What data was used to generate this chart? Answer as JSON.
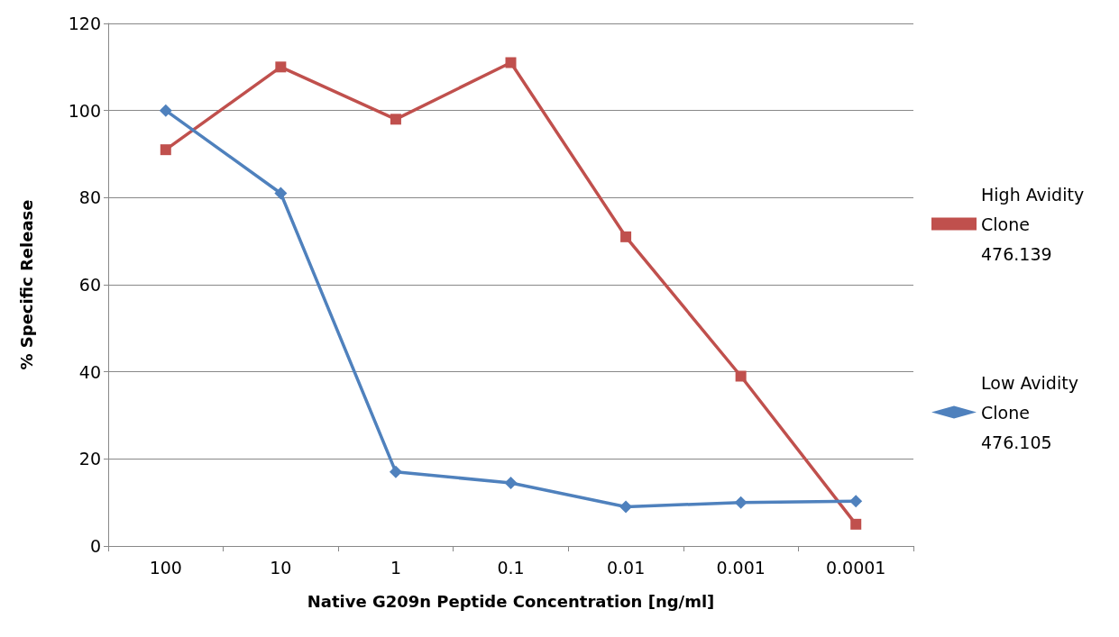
{
  "chart_data": {
    "type": "line",
    "xlabel": "Native G209n Peptide Concentration [ng/ml]",
    "ylabel": "% Specific Release",
    "categories": [
      "100",
      "10",
      "1",
      "0.1",
      "0.01",
      "0.001",
      "0.0001"
    ],
    "series": [
      {
        "name": "High Avidity Clone 476.139",
        "color": "#c0504d",
        "marker": "square",
        "values": [
          91,
          110,
          98,
          111,
          71,
          39,
          5
        ]
      },
      {
        "name": "Low Avidity Clone 476.105",
        "color": "#4f81bd",
        "marker": "diamond",
        "values": [
          100,
          81,
          17,
          14.5,
          9,
          10,
          10.3
        ]
      }
    ],
    "ylim": [
      0,
      120
    ],
    "yticks": [
      0,
      20,
      40,
      60,
      80,
      100,
      120
    ],
    "grid": "y",
    "legend": "right",
    "line_style": "solid"
  }
}
